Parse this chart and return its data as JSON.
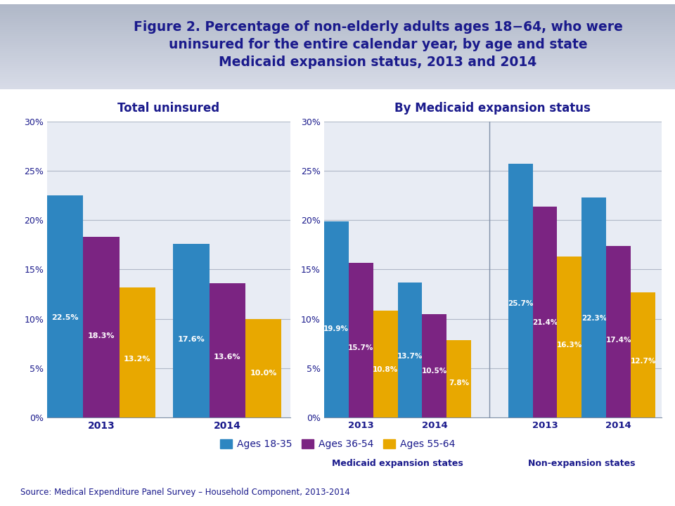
{
  "title_line1": "Figure 2. Percentage of non-elderly adults ages 18−64, who were",
  "title_line2": "uninsured for the entire calendar year, by age and state",
  "title_line3": "Medicaid expansion status, 2013 and 2014",
  "subtitle_left": "Total uninsured",
  "subtitle_right": "By Medicaid expansion status",
  "left_chart": {
    "groups": [
      "2013",
      "2014"
    ],
    "ages_18_35": [
      22.5,
      17.6
    ],
    "ages_36_54": [
      18.3,
      13.6
    ],
    "ages_55_64": [
      13.2,
      10.0
    ]
  },
  "right_chart": {
    "groups": [
      "2013",
      "2014",
      "2013",
      "2014"
    ],
    "group_labels": [
      "Medicaid expansion states",
      "Non-expansion states"
    ],
    "ages_18_35": [
      19.9,
      13.7,
      25.7,
      22.3
    ],
    "ages_36_54": [
      15.7,
      10.5,
      21.4,
      17.4
    ],
    "ages_55_64": [
      10.8,
      7.8,
      16.3,
      12.7
    ]
  },
  "colors": {
    "blue": "#2E86C1",
    "purple": "#7B2482",
    "gold": "#E8A800"
  },
  "legend_labels": [
    "Ages 18-35",
    "Ages 36-54",
    "Ages 55-64"
  ],
  "ylim": [
    0,
    30
  ],
  "yticks": [
    0,
    5,
    10,
    15,
    20,
    25,
    30
  ],
  "ytick_labels": [
    "0%",
    "5%",
    "10%",
    "15%",
    "20%",
    "25%",
    "30%"
  ],
  "source_text": "Source: Medical Expenditure Panel Survey – Household Component, 2013-2014",
  "bg_color": "#FFFFFF",
  "header_bg_top": "#B0B8C8",
  "header_bg_bottom": "#D8DCE8",
  "chart_area_bg": "#E8ECF4",
  "title_color": "#1A1A8C",
  "subtitle_color": "#1A1A8C",
  "text_color": "#1A1A8C",
  "grid_color": "#B0B8C8",
  "axis_label_color": "#1A1A8C",
  "separator_color": "#8090A8"
}
